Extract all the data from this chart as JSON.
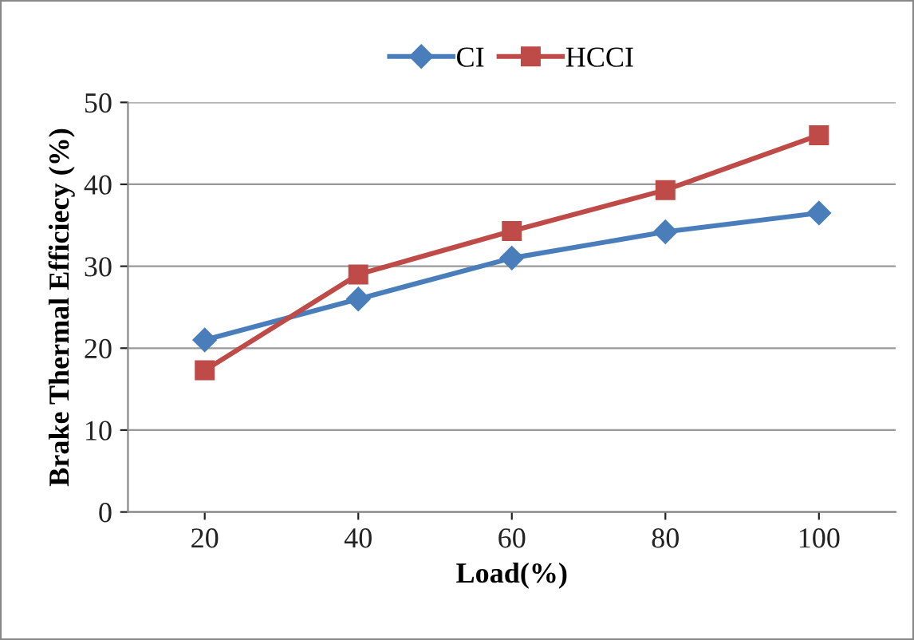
{
  "chart_data": {
    "type": "line",
    "xlabel": "Load(%)",
    "ylabel": "Brake Thermal Efficiecy (%)",
    "categories": [
      "20",
      "40",
      "60",
      "80",
      "100"
    ],
    "series": [
      {
        "name": "CI",
        "color": "#4a7ebb",
        "values": [
          21,
          26,
          31,
          34.2,
          36.5
        ],
        "marker": "diamond"
      },
      {
        "name": "HCCI",
        "color": "#be4b48",
        "values": [
          17.3,
          29,
          34.3,
          39.3,
          46
        ],
        "marker": "square"
      }
    ],
    "ylim": [
      0,
      50
    ],
    "yticks": [
      0,
      10,
      20,
      30,
      40,
      50
    ],
    "grid": "y",
    "legend": "top",
    "line_style": "solid"
  }
}
